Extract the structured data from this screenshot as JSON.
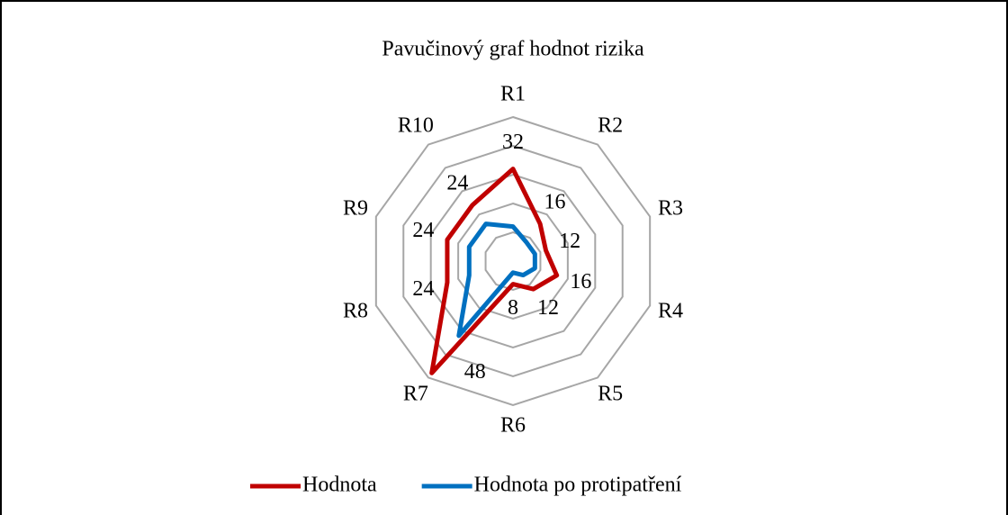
{
  "chart_data": {
    "type": "radar",
    "title": "Pavučinový graf hodnot rizika",
    "categories": [
      "R1",
      "R2",
      "R3",
      "R4",
      "R5",
      "R6",
      "R7",
      "R8",
      "R9",
      "R10"
    ],
    "ylim": [
      0,
      50
    ],
    "yticks": [
      0,
      10,
      20,
      30,
      40,
      50
    ],
    "grid": true,
    "legend": "bottom",
    "series": [
      {
        "name": "Hodnota",
        "color": "#c00000",
        "values": [
          32,
          16,
          12,
          16,
          12,
          8,
          48,
          24,
          24,
          24
        ]
      },
      {
        "name": "Hodnota po protipatření",
        "color": "#0070c0",
        "values": [
          12,
          8,
          8,
          8,
          6,
          4,
          32,
          16,
          16,
          16
        ]
      }
    ]
  }
}
